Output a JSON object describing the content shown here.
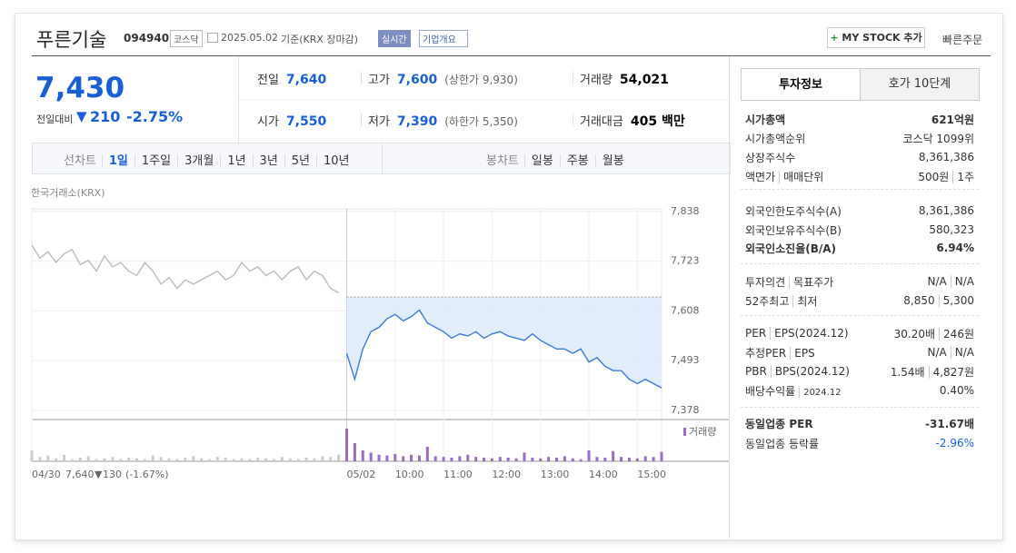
{
  "header": {
    "name": "푸른기술",
    "code": "094940",
    "market": "코스닥",
    "date": "2025.05.02",
    "basis": "기준(KRX 장마감)",
    "realtime": "실시간",
    "overview": "기업개요",
    "my_stock": "MY STOCK 추가",
    "quick_order": "빠른주문"
  },
  "price": {
    "current": "7,430",
    "change_label": "전일대비",
    "change": "210",
    "change_pct": "-2.75%"
  },
  "summary": [
    {
      "label": "전일",
      "value": "7,640"
    },
    {
      "label": "고가",
      "value": "7,600",
      "sub": "(상한가 9,930)"
    },
    {
      "label": "거래량",
      "value": "54,021"
    },
    {
      "label": "시가",
      "value": "7,550"
    },
    {
      "label": "저가",
      "value": "7,390",
      "sub": "(하한가 5,350)"
    },
    {
      "label": "거래대금",
      "value": "405 백만"
    }
  ],
  "tabs": {
    "line_label": "선차트",
    "line_periods": [
      "1일",
      "1주일",
      "3개월",
      "1년",
      "3년",
      "5년",
      "10년"
    ],
    "candle_label": "봉차트",
    "candle_periods": [
      "일봉",
      "주봉",
      "월봉"
    ]
  },
  "chart": {
    "type": "line",
    "source": "한국거래소(KRX)",
    "ylim": [
      7357,
      7844
    ],
    "yticks": [
      {
        "value": 7378,
        "label": "7,378"
      },
      {
        "value": 7493,
        "label": "7,493"
      },
      {
        "value": 7608,
        "label": "7,608"
      },
      {
        "value": 7723,
        "label": "7,723"
      },
      {
        "value": 7838,
        "label": "7,838"
      }
    ],
    "xlim": [
      -390,
      390
    ],
    "xticks": [
      {
        "value": -390,
        "label": "04/30"
      },
      {
        "value": 0,
        "label": "05/02"
      },
      {
        "value": 60,
        "label": "10:00"
      },
      {
        "value": 120,
        "label": "11:00"
      },
      {
        "value": 180,
        "label": "12:00"
      },
      {
        "value": 240,
        "label": "13:00"
      },
      {
        "value": 300,
        "label": "14:00"
      },
      {
        "value": 360,
        "label": "15:00"
      }
    ],
    "base": 7640,
    "series": [
      {
        "color": "#bbbbbb",
        "x": [
          -390,
          -380,
          -370,
          -360,
          -350,
          -340,
          -330,
          -320,
          -310,
          -300,
          -290,
          -280,
          -270,
          -260,
          -250,
          -240,
          -230,
          -220,
          -210,
          -200,
          -190,
          -180,
          -170,
          -160,
          -150,
          -140,
          -130,
          -120,
          -110,
          -100,
          -90,
          -80,
          -70,
          -60,
          -50,
          -40,
          -30,
          -20,
          -10
        ],
        "values": [
          7760,
          7730,
          7745,
          7720,
          7740,
          7750,
          7715,
          7725,
          7700,
          7735,
          7710,
          7720,
          7700,
          7690,
          7720,
          7700,
          7670,
          7685,
          7660,
          7680,
          7670,
          7680,
          7690,
          7700,
          7680,
          7690,
          7720,
          7700,
          7710,
          7690,
          7700,
          7680,
          7700,
          7710,
          7680,
          7700,
          7690,
          7660,
          7650
        ]
      },
      {
        "color": "#3a7bd5",
        "x": [
          0,
          10,
          20,
          30,
          40,
          50,
          60,
          70,
          80,
          90,
          100,
          110,
          120,
          130,
          140,
          150,
          160,
          170,
          180,
          190,
          200,
          210,
          220,
          230,
          240,
          250,
          260,
          270,
          280,
          290,
          300,
          310,
          320,
          330,
          340,
          350,
          360,
          370,
          380,
          390
        ],
        "values": [
          7510,
          7450,
          7520,
          7560,
          7570,
          7590,
          7600,
          7585,
          7595,
          7610,
          7580,
          7570,
          7560,
          7545,
          7555,
          7550,
          7560,
          7545,
          7555,
          7560,
          7550,
          7545,
          7540,
          7555,
          7540,
          7530,
          7520,
          7520,
          7510,
          7520,
          7490,
          7500,
          7480,
          7470,
          7470,
          7450,
          7440,
          7450,
          7440,
          7430
        ]
      }
    ],
    "volume": {
      "name": "거래량",
      "ylim": [
        0,
        5000
      ],
      "series": [
        {
          "color": "#cccccc",
          "values": [
            1500,
            600,
            800,
            400,
            900,
            300,
            500,
            700,
            300,
            400,
            600,
            300,
            500,
            400,
            300,
            800,
            600,
            400,
            300,
            500,
            700,
            400,
            300,
            600,
            500,
            300,
            400,
            300,
            500,
            400,
            300,
            600,
            400,
            300,
            500,
            400,
            700,
            600,
            900
          ]
        },
        {
          "color": "#9b6cc4",
          "values": [
            4500,
            2500,
            1500,
            1200,
            900,
            800,
            1000,
            700,
            900,
            800,
            2000,
            700,
            600,
            500,
            700,
            900,
            600,
            500,
            400,
            600,
            500,
            400,
            1200,
            500,
            400,
            600,
            500,
            700,
            400,
            300,
            1500,
            600,
            500,
            1400,
            600,
            500,
            400,
            700,
            600,
            1300
          ]
        }
      ]
    },
    "prev": {
      "close": "7,640",
      "change": "130",
      "change_pct": "(-1.67%)"
    }
  },
  "invest_info": {
    "tabs": [
      "투자정보",
      "호가 10단계"
    ],
    "sections": [
      [
        {
          "labels": [
            "시가총액"
          ],
          "values": [
            "621억원"
          ]
        },
        {
          "labels": [
            "시가총액순위"
          ],
          "values": [
            "코스닥 1099위"
          ]
        },
        {
          "labels": [
            "상장주식수"
          ],
          "values": [
            "8,361,386"
          ]
        },
        {
          "labels": [
            "액면가",
            "매매단위"
          ],
          "values": [
            "500원",
            "1주"
          ]
        }
      ],
      [
        {
          "labels": [
            "외국인한도주식수(A)"
          ],
          "values": [
            "8,361,386"
          ]
        },
        {
          "labels": [
            "외국인보유주식수(B)"
          ],
          "values": [
            "580,323"
          ]
        },
        {
          "labels": [
            "외국인소진율(B/A)"
          ],
          "values": [
            "6.94%"
          ]
        }
      ],
      [
        {
          "labels": [
            "투자의견",
            "목표주가"
          ],
          "values": [
            "N/A",
            "N/A"
          ]
        },
        {
          "labels": [
            "52주최고",
            "최저"
          ],
          "values": [
            "8,850",
            "5,300"
          ]
        }
      ],
      [
        {
          "labels": [
            "PER",
            "EPS(2024.12)"
          ],
          "values": [
            "30.20배",
            "246원"
          ]
        },
        {
          "labels": [
            "추정PER",
            "EPS"
          ],
          "values": [
            "N/A",
            "N/A"
          ]
        },
        {
          "labels": [
            "PBR",
            "BPS(2024.12)"
          ],
          "values": [
            "1.54배",
            "4,827원"
          ]
        },
        {
          "labels": [
            "배당수익률",
            "2024.12"
          ],
          "values": [
            "0.40%"
          ]
        }
      ],
      [
        {
          "labels": [
            "동일업종 PER"
          ],
          "values": [
            "-31.67배"
          ]
        },
        {
          "labels": [
            "동일업종 등락률"
          ],
          "values": [
            "-2.96%"
          ]
        }
      ]
    ]
  }
}
